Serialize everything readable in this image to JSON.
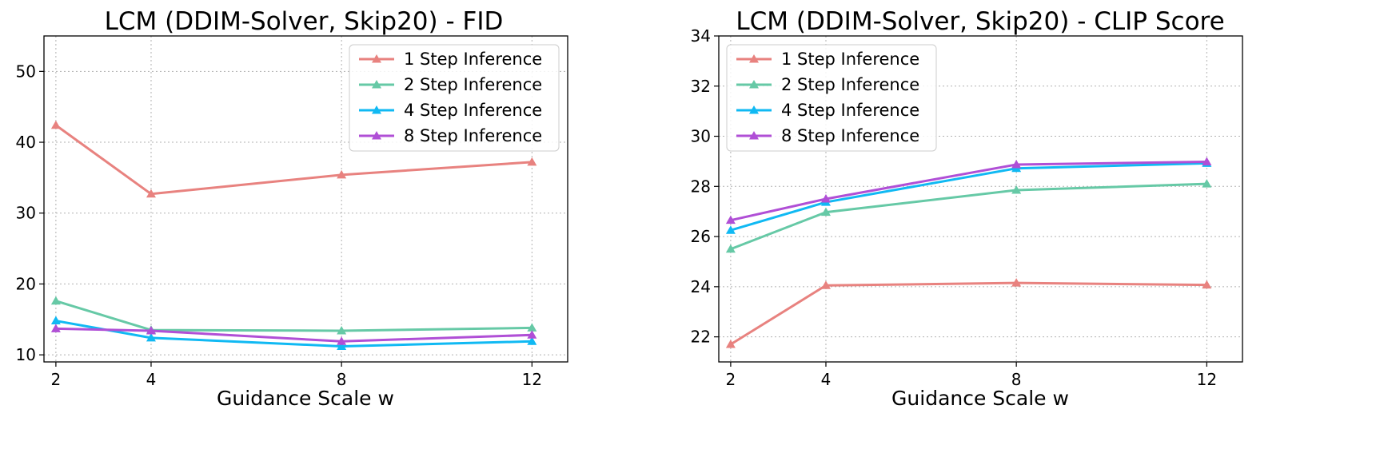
{
  "chart_data": [
    {
      "type": "line",
      "title": "LCM (DDIM-Solver, Skip20) - FID",
      "xlabel": "Guidance Scale w",
      "ylabel": "",
      "x": [
        2,
        4,
        8,
        12
      ],
      "xticks": [
        "2",
        "4",
        "8",
        "12"
      ],
      "xlim": [
        1.75,
        12.75
      ],
      "ylim": [
        9,
        55
      ],
      "yticks": [
        "10",
        "20",
        "30",
        "40",
        "50"
      ],
      "grid": true,
      "legend_position": "top-right",
      "series": [
        {
          "name": "1 Step Inference",
          "color": "#e8827f",
          "marker": "triangle-up",
          "values": [
            42.4,
            32.7,
            35.4,
            37.2
          ]
        },
        {
          "name": "2 Step Inference",
          "color": "#66c9a6",
          "marker": "triangle-up",
          "values": [
            17.6,
            13.5,
            13.4,
            13.8
          ]
        },
        {
          "name": "4 Step Inference",
          "color": "#10b9f3",
          "marker": "triangle-up",
          "values": [
            14.8,
            12.4,
            11.2,
            11.9
          ]
        },
        {
          "name": "8 Step Inference",
          "color": "#b04fd6",
          "marker": "triangle-up",
          "values": [
            13.7,
            13.4,
            11.9,
            12.8
          ]
        }
      ]
    },
    {
      "type": "line",
      "title": "LCM (DDIM-Solver, Skip20) - CLIP Score",
      "xlabel": "Guidance Scale w",
      "ylabel": "",
      "x": [
        2,
        4,
        8,
        12
      ],
      "xticks": [
        "2",
        "4",
        "8",
        "12"
      ],
      "xlim": [
        1.75,
        12.75
      ],
      "ylim": [
        21,
        34
      ],
      "yticks": [
        "22",
        "24",
        "26",
        "28",
        "30",
        "32",
        "34"
      ],
      "grid": true,
      "legend_position": "top-left",
      "series": [
        {
          "name": "1 Step Inference",
          "color": "#e8827f",
          "marker": "triangle-up",
          "values": [
            21.7,
            24.05,
            24.15,
            24.07
          ]
        },
        {
          "name": "2 Step Inference",
          "color": "#66c9a6",
          "marker": "triangle-up",
          "values": [
            25.5,
            26.97,
            27.85,
            28.1
          ]
        },
        {
          "name": "4 Step Inference",
          "color": "#10b9f3",
          "marker": "triangle-up",
          "values": [
            26.25,
            27.37,
            28.72,
            28.92
          ]
        },
        {
          "name": "8 Step Inference",
          "color": "#b04fd6",
          "marker": "triangle-up",
          "values": [
            26.65,
            27.5,
            28.87,
            28.98
          ]
        }
      ]
    }
  ]
}
